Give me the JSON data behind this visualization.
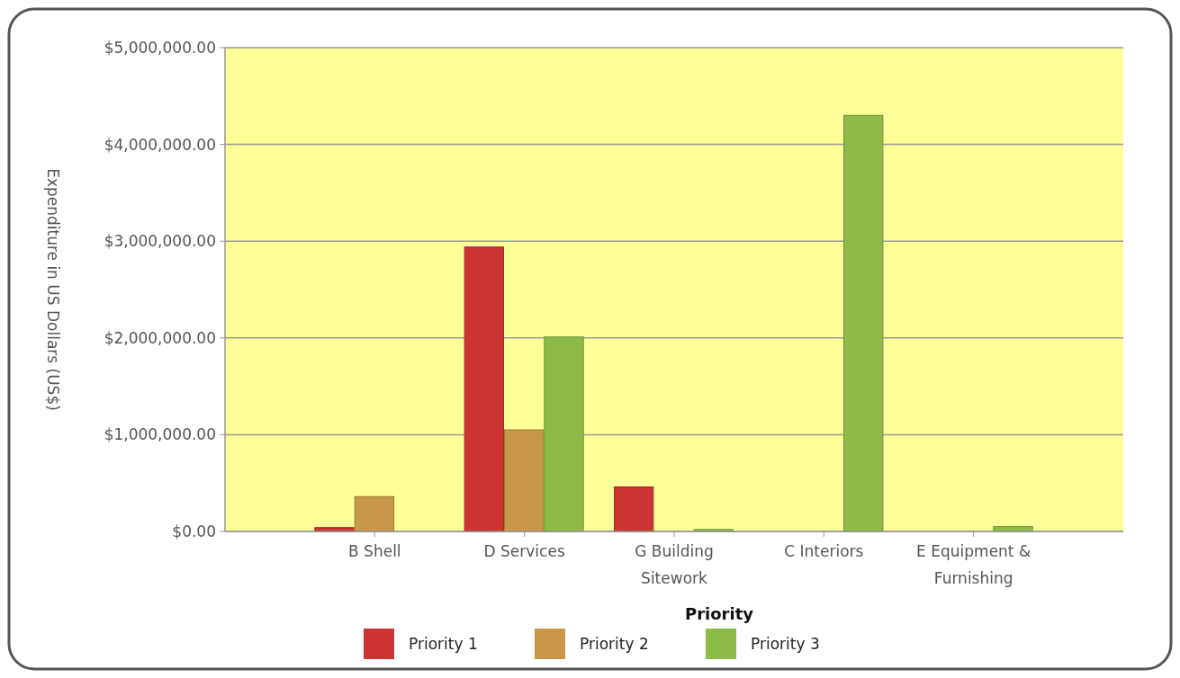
{
  "chart_data": {
    "type": "bar",
    "xlabel": "Priority",
    "ylabel": "Expenditure in US Dollars (US$)",
    "categories": [
      "B Shell",
      "D Services",
      "G Building Sitework",
      "C Interiors",
      "E Equipment & Furnishing"
    ],
    "series": [
      {
        "name": "Priority 1",
        "color": "#cc3333",
        "values": [
          40000,
          2940000,
          460000,
          null,
          null
        ]
      },
      {
        "name": "Priority 2",
        "color": "#c8974a",
        "values": [
          360000,
          1050000,
          null,
          null,
          null
        ]
      },
      {
        "name": "Priority 3",
        "color": "#8dbb4a",
        "values": [
          null,
          2010000,
          20000,
          4300000,
          50000
        ]
      }
    ],
    "ylim": [
      0,
      5000000
    ],
    "yticks": [
      {
        "value": 0,
        "label": "$0.00"
      },
      {
        "value": 1000000,
        "label": "$1,000,000.00"
      },
      {
        "value": 2000000,
        "label": "$2,000,000.00"
      },
      {
        "value": 3000000,
        "label": "$3,000,000.00"
      },
      {
        "value": 4000000,
        "label": "$4,000,000.00"
      },
      {
        "value": 5000000,
        "label": "$5,000,000.00"
      }
    ],
    "grid": "y",
    "legend": "bottom"
  }
}
